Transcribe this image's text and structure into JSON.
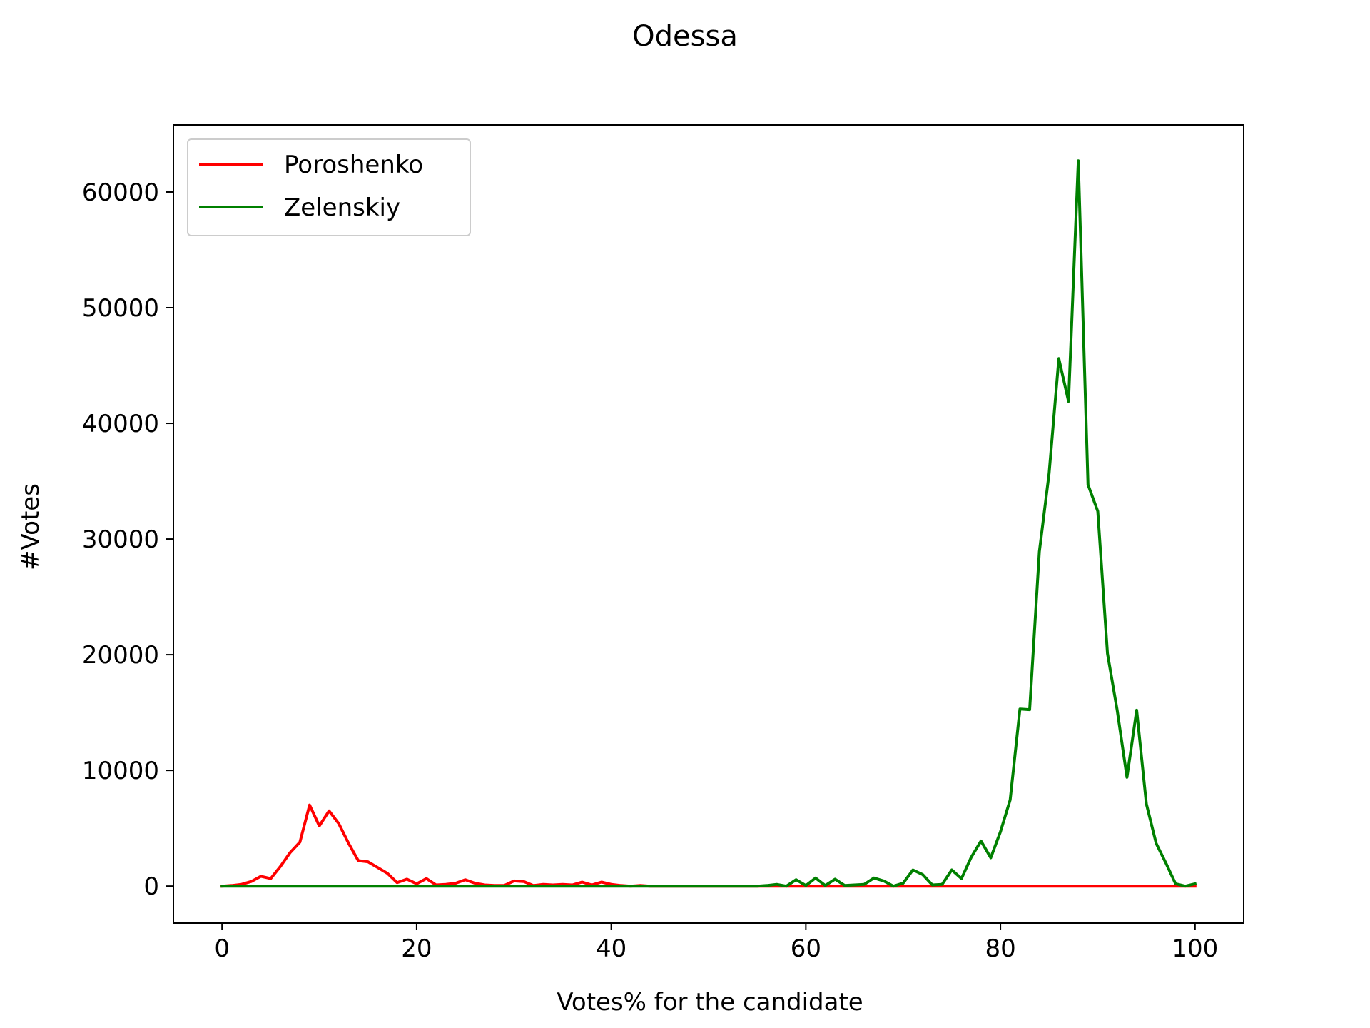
{
  "chart_data": {
    "type": "line",
    "title": "Odessa",
    "xlabel": "Votes% for the candidate",
    "ylabel": "#Votes",
    "xlim": [
      -5,
      105
    ],
    "ylim": [
      -3200,
      65800
    ],
    "xticks": [
      0,
      20,
      40,
      60,
      80,
      100
    ],
    "yticks": [
      0,
      10000,
      20000,
      30000,
      40000,
      50000,
      60000
    ],
    "grid": false,
    "legend_position": "upper left",
    "x": [
      0,
      1,
      2,
      3,
      4,
      5,
      6,
      7,
      8,
      9,
      10,
      11,
      12,
      13,
      14,
      15,
      16,
      17,
      18,
      19,
      20,
      21,
      22,
      23,
      24,
      25,
      26,
      27,
      28,
      29,
      30,
      31,
      32,
      33,
      34,
      35,
      36,
      37,
      38,
      39,
      40,
      41,
      42,
      43,
      44,
      45,
      46,
      47,
      48,
      49,
      50,
      51,
      52,
      53,
      54,
      55,
      56,
      57,
      58,
      59,
      60,
      61,
      62,
      63,
      64,
      65,
      66,
      67,
      68,
      69,
      70,
      71,
      72,
      73,
      74,
      75,
      76,
      77,
      78,
      79,
      80,
      81,
      82,
      83,
      84,
      85,
      86,
      87,
      88,
      89,
      90,
      91,
      92,
      93,
      94,
      95,
      96,
      97,
      98,
      99,
      100
    ],
    "series": [
      {
        "name": "Poroshenko",
        "color": "#ff0000",
        "values": [
          0,
          50,
          150,
          400,
          850,
          650,
          1700,
          2900,
          3800,
          7000,
          5200,
          6500,
          5400,
          3700,
          2200,
          2100,
          1600,
          1100,
          300,
          600,
          200,
          650,
          100,
          150,
          250,
          550,
          250,
          100,
          50,
          50,
          450,
          400,
          50,
          150,
          100,
          150,
          100,
          350,
          100,
          350,
          150,
          50,
          0,
          50,
          0,
          0,
          0,
          0,
          0,
          0,
          0,
          0,
          0,
          0,
          0,
          0,
          0,
          0,
          0,
          0,
          0,
          0,
          0,
          0,
          0,
          0,
          0,
          0,
          0,
          0,
          0,
          0,
          0,
          0,
          0,
          0,
          0,
          0,
          0,
          0,
          0,
          0,
          0,
          0,
          0,
          0,
          0,
          0,
          0,
          0,
          0,
          0,
          0,
          0,
          0,
          0,
          0,
          0,
          0,
          0,
          0
        ]
      },
      {
        "name": "Zelenskiy",
        "color": "#008000",
        "values": [
          0,
          0,
          0,
          0,
          0,
          0,
          0,
          0,
          0,
          0,
          0,
          0,
          0,
          0,
          0,
          0,
          0,
          0,
          0,
          0,
          0,
          0,
          0,
          0,
          0,
          0,
          0,
          0,
          0,
          0,
          0,
          0,
          0,
          0,
          0,
          0,
          0,
          0,
          0,
          0,
          0,
          0,
          0,
          0,
          0,
          0,
          0,
          0,
          0,
          0,
          0,
          0,
          0,
          0,
          0,
          0,
          50,
          150,
          0,
          550,
          50,
          700,
          50,
          600,
          50,
          100,
          150,
          700,
          450,
          0,
          250,
          1400,
          1000,
          100,
          150,
          1400,
          650,
          2500,
          3900,
          2450,
          4700,
          7450,
          15300,
          15250,
          28900,
          35700,
          45600,
          41900,
          62700,
          34700,
          32400,
          20100,
          15200,
          9400,
          15200,
          7100,
          3700,
          2000,
          200,
          0,
          200
        ]
      }
    ]
  }
}
